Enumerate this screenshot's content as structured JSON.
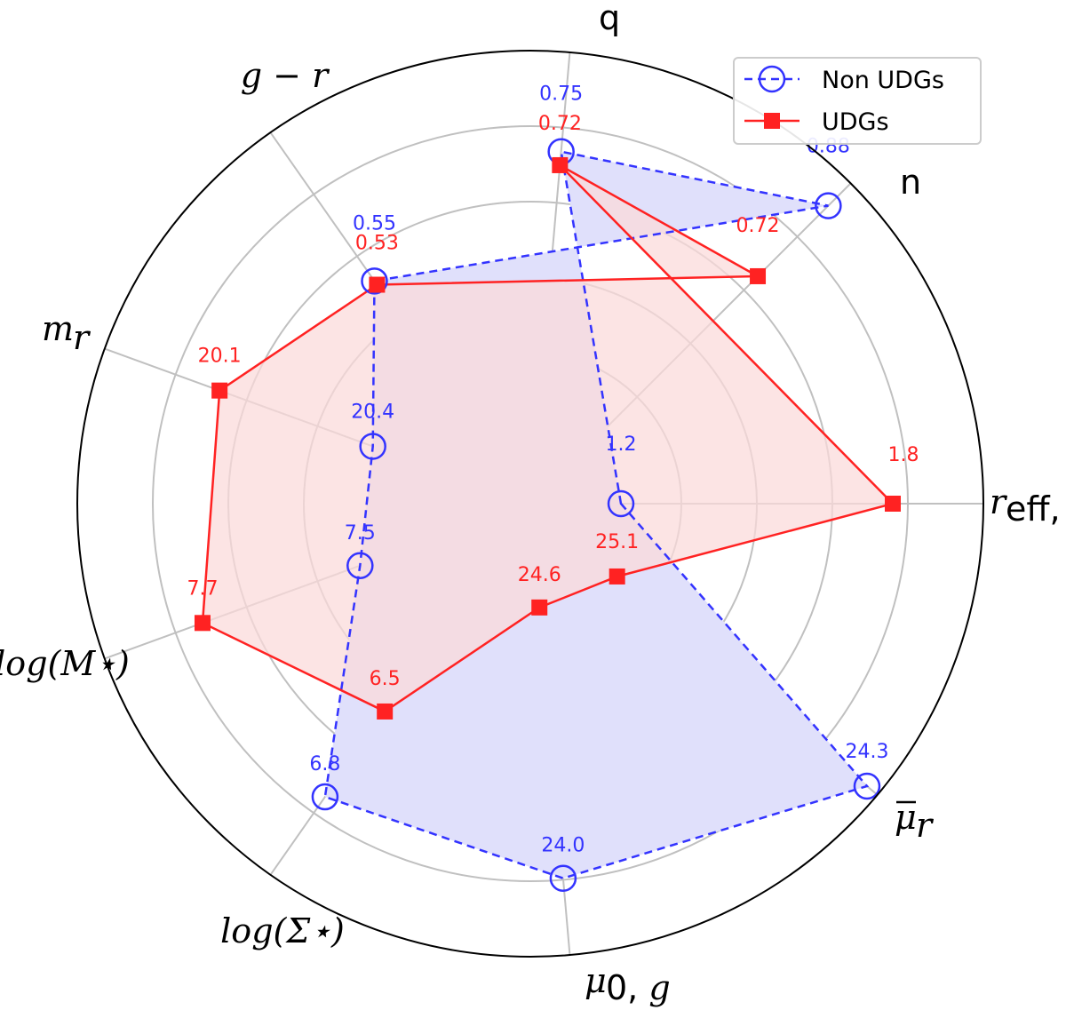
{
  "chart_data": {
    "type": "radar",
    "axes": [
      {
        "key": "reff",
        "label": "r_eff,g"
      },
      {
        "key": "q",
        "label": "q"
      },
      {
        "key": "n",
        "label": "n"
      },
      {
        "key": "g_r",
        "label": "g − r"
      },
      {
        "key": "mr",
        "label": "m_r"
      },
      {
        "key": "logM",
        "label": "log(M⋆)"
      },
      {
        "key": "logSigma",
        "label": "log(Σ⋆)"
      },
      {
        "key": "mu0g",
        "label": "μ0,g"
      },
      {
        "key": "mubar_r",
        "label": "μ̄_r"
      }
    ],
    "grid": true,
    "radial_levels": 5,
    "legend_position": "top-right",
    "series": [
      {
        "name": "Non UDGs",
        "color": "#3333ff",
        "fill": "#e0e0fb",
        "style": "dashed",
        "marker": "open-circle",
        "points": [
          {
            "axis": "reff",
            "label": "1.2",
            "norm": 0.2
          },
          {
            "axis": "q",
            "label": "0.75",
            "norm": 0.78
          },
          {
            "axis": "n",
            "label": "0.88",
            "norm": 0.93
          },
          {
            "axis": "g_r",
            "label": "0.55",
            "norm": 0.6
          },
          {
            "axis": "mr",
            "label": "20.4",
            "norm": 0.37
          },
          {
            "axis": "logM",
            "label": "7.5",
            "norm": 0.4
          },
          {
            "axis": "logSigma",
            "label": "6.8",
            "norm": 0.79
          },
          {
            "axis": "mu0g",
            "label": "24.0",
            "norm": 0.83
          },
          {
            "axis": "mubar_r",
            "label": "24.3",
            "norm": 0.97
          }
        ]
      },
      {
        "name": "UDGs",
        "color": "#ff2222",
        "fill": "#fbdada",
        "style": "solid",
        "marker": "filled-square",
        "points": [
          {
            "axis": "reff",
            "label": "1.8",
            "norm": 0.8
          },
          {
            "axis": "q",
            "label": "0.72",
            "norm": 0.75
          },
          {
            "axis": "n",
            "label": "0.72",
            "norm": 0.71
          },
          {
            "axis": "g_r",
            "label": "0.53",
            "norm": 0.59
          },
          {
            "axis": "mr",
            "label": "20.1",
            "norm": 0.73
          },
          {
            "axis": "logM",
            "label": "7.7",
            "norm": 0.77
          },
          {
            "axis": "logSigma",
            "label": "6.5",
            "norm": 0.56
          },
          {
            "axis": "mu0g",
            "label": "24.6",
            "norm": 0.23
          },
          {
            "axis": "mubar_r",
            "label": "25.1",
            "norm": 0.25
          }
        ]
      }
    ]
  }
}
